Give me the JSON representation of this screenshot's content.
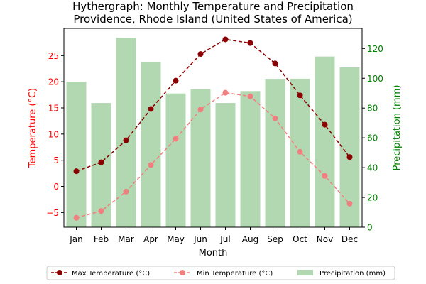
{
  "chart_data": {
    "type": "bar+line",
    "title_line1": "Hythergraph: Monthly Temperature and Precipitation",
    "title_line2": "Providence, Rhode Island (United States of America)",
    "xlabel": "Month",
    "ylabel_left": "Temperature (°C)",
    "ylabel_right": "Precipitation (mm)",
    "categories": [
      "Jan",
      "Feb",
      "Mar",
      "Apr",
      "May",
      "Jun",
      "Jul",
      "Aug",
      "Sep",
      "Oct",
      "Nov",
      "Dec"
    ],
    "y_left_lim": [
      -7.8,
      30.2
    ],
    "y_left_ticks": [
      -5,
      0,
      5,
      10,
      15,
      20,
      25
    ],
    "y_right_lim": [
      0,
      133.5
    ],
    "y_right_ticks": [
      0,
      20,
      40,
      60,
      80,
      100,
      120
    ],
    "series": [
      {
        "name": "Max Temperature (°C)",
        "axis": "left",
        "kind": "line",
        "color": "#8b0000",
        "values": [
          2.9,
          4.6,
          8.8,
          14.8,
          20.2,
          25.3,
          28.1,
          27.4,
          23.5,
          17.4,
          11.8,
          5.6
        ]
      },
      {
        "name": "Min Temperature (°C)",
        "axis": "left",
        "kind": "line",
        "color": "#f08080",
        "values": [
          -6.0,
          -4.7,
          -1.0,
          4.1,
          9.1,
          14.7,
          17.9,
          17.2,
          13.0,
          6.6,
          2.0,
          -3.3
        ]
      },
      {
        "name": "Precipitation (mm)",
        "axis": "right",
        "kind": "bar",
        "color": "#b2d8b2",
        "values": [
          97.6,
          83.4,
          127.2,
          110.7,
          89.8,
          92.6,
          83.4,
          91.4,
          99.6,
          99.7,
          114.6,
          107.3
        ]
      }
    ],
    "legend": "bottom-center",
    "grid": false
  },
  "colors": {
    "left_axis": "#ff0000",
    "right_axis": "#008000"
  }
}
